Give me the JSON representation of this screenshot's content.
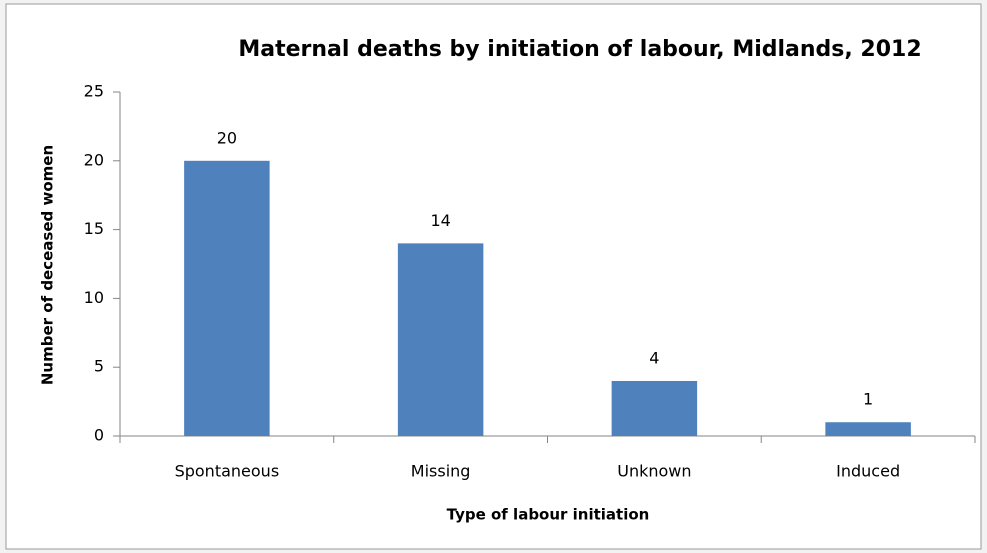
{
  "chart_data": {
    "type": "bar",
    "title": "Maternal deaths by initiation of labour, Midlands, 2012",
    "x_label": "Type of labour initiation",
    "y_label": "Number of deceased women",
    "categories": [
      "Spontaneous",
      "Missing",
      "Unknown",
      "Induced"
    ],
    "values": [
      20,
      14,
      4,
      1
    ],
    "color": "#4f81bd",
    "ylim": [
      0,
      25
    ],
    "yticks": [
      0,
      5,
      10,
      15,
      20,
      25
    ],
    "grid": false,
    "data_labels": true
  }
}
